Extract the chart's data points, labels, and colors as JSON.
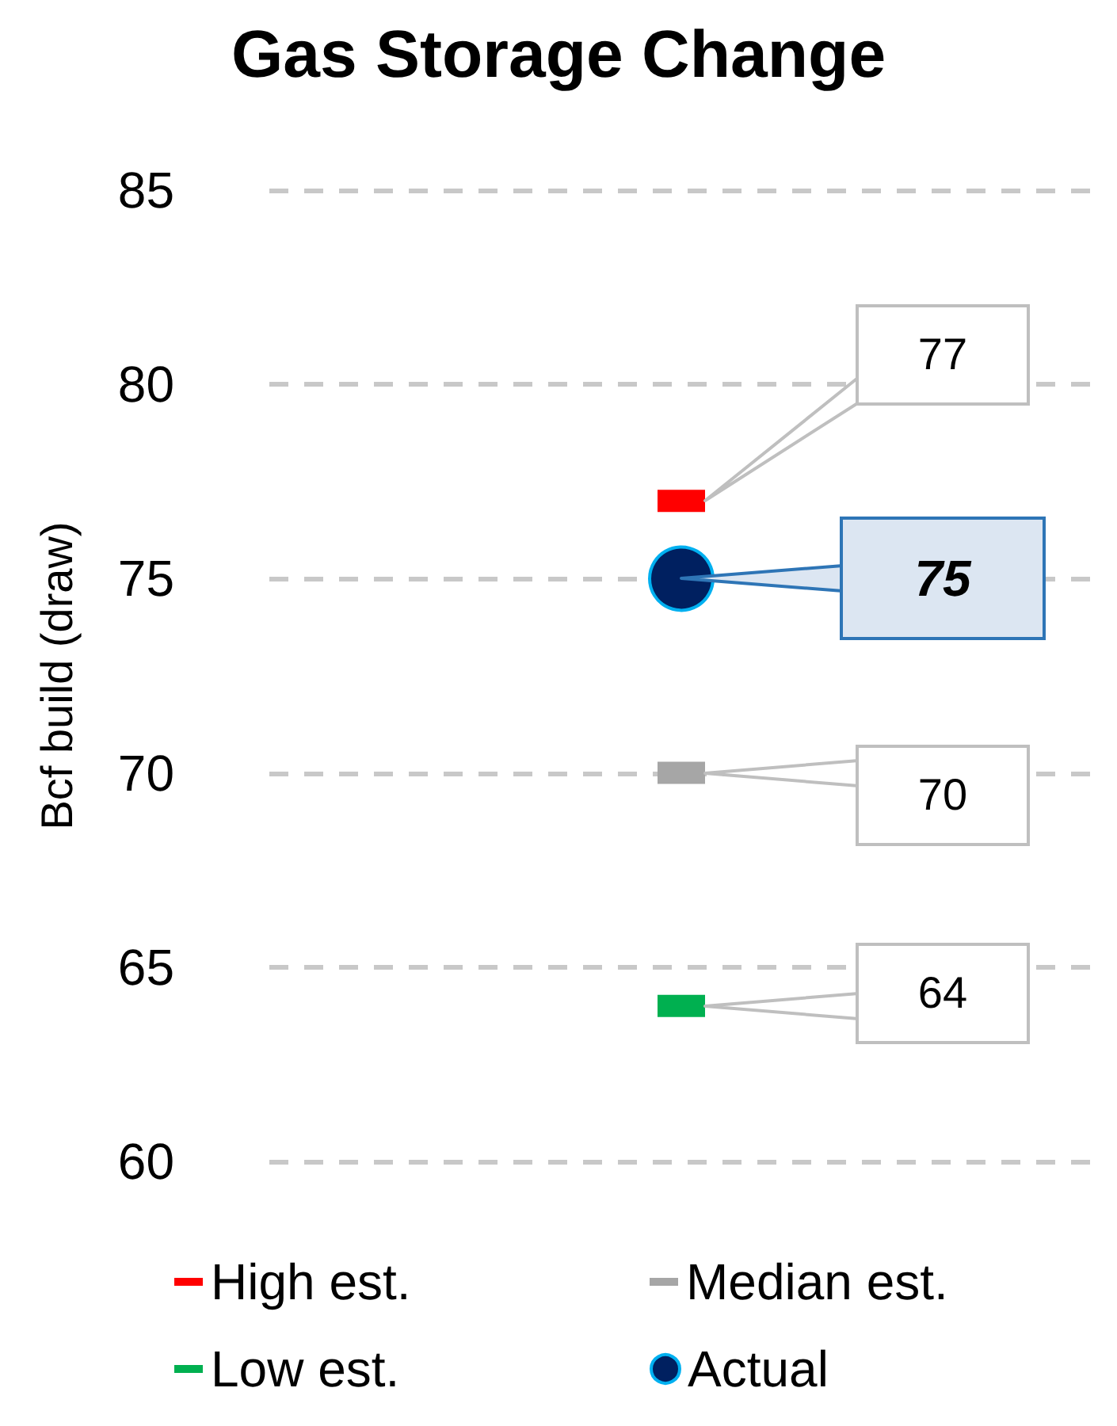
{
  "chart_data": {
    "type": "scatter",
    "title": "Gas Storage Change",
    "ylabel": "Bcf build (draw)",
    "categories": [
      null
    ],
    "series": [
      {
        "name": "High est.",
        "color": "#ff0000",
        "values": [
          77
        ],
        "marker": "square"
      },
      {
        "name": "Median est.",
        "color": "#a6a6a6",
        "values": [
          70
        ],
        "marker": "square"
      },
      {
        "name": "Low est.",
        "color": "#00b050",
        "values": [
          64
        ],
        "marker": "square"
      },
      {
        "name": "Actual",
        "color": "#002060",
        "values": [
          75
        ],
        "marker": "circle"
      }
    ],
    "annotations": [
      "77",
      "70",
      "64",
      "75"
    ],
    "ylim": [
      60,
      85
    ],
    "yticks": [
      60,
      65,
      70,
      75,
      80,
      85
    ],
    "grid": "y",
    "legend": "bottom"
  }
}
